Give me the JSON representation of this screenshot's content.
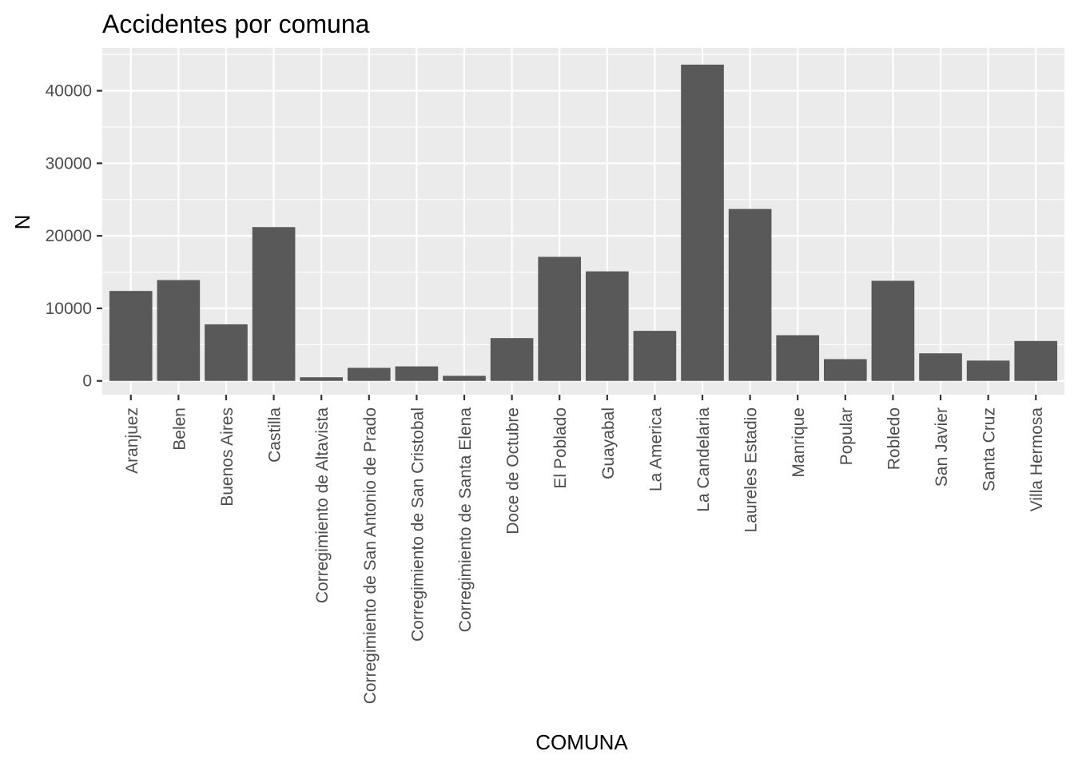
{
  "chart_data": {
    "type": "bar",
    "title": "Accidentes por comuna",
    "xlabel": "COMUNA",
    "ylabel": "N",
    "categories": [
      "Aranjuez",
      "Belen",
      "Buenos Aires",
      "Castilla",
      "Corregimiento de Altavista",
      "Corregimiento de San Antonio de Prado",
      "Corregimiento de San Cristobal",
      "Corregimiento de Santa Elena",
      "Doce de Octubre",
      "El Poblado",
      "Guayabal",
      "La America",
      "La Candelaria",
      "Laureles Estadio",
      "Manrique",
      "Popular",
      "Robledo",
      "San Javier",
      "Santa Cruz",
      "Villa Hermosa"
    ],
    "values": [
      12400,
      13900,
      7800,
      21200,
      500,
      1800,
      2000,
      700,
      5900,
      17100,
      15100,
      6900,
      43600,
      23700,
      6300,
      3000,
      13800,
      3800,
      2800,
      5500
    ],
    "ylim": [
      -1900,
      45900
    ],
    "yticks": [
      0,
      10000,
      20000,
      30000,
      40000
    ],
    "ytick_labels": [
      "0",
      "10000",
      "20000",
      "30000",
      "40000"
    ],
    "grid": true,
    "legend": "none",
    "colors": {
      "bar": "#595959",
      "panel": "#ebebeb",
      "grid": "#ffffff"
    }
  }
}
